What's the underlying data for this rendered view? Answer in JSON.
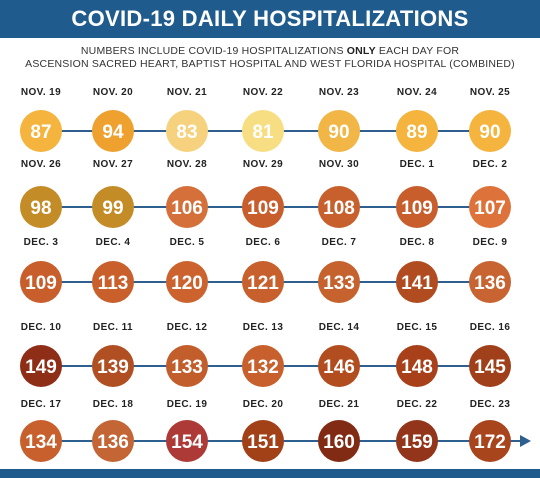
{
  "header": {
    "title": "COVID-19 DAILY HOSPITALIZATIONS",
    "subtitle_before": "NUMBERS INCLUDE COVID-19 HOSPITALIZATIONS",
    "subtitle_emphasis": "ONLY",
    "subtitle_after": "EACH DAY FOR",
    "subtitle_line2": "ASCENSION SACRED HEART, BAPTIST HOSPITAL AND WEST FLORIDA HOSPITAL (COMBINED)"
  },
  "colors": {
    "header_bg": "#1f5c8d",
    "connector": "#2e5f8e"
  },
  "chart_data": {
    "type": "table",
    "title": "COVID-19 DAILY HOSPITALIZATIONS",
    "categories": [
      "NOV. 19",
      "NOV. 20",
      "NOV. 21",
      "NOV. 22",
      "NOV. 23",
      "NOV. 24",
      "NOV. 25",
      "NOV. 26",
      "NOV. 27",
      "NOV. 28",
      "NOV. 29",
      "NOV. 30",
      "DEC. 1",
      "DEC. 2",
      "DEC. 3",
      "DEC. 4",
      "DEC. 5",
      "DEC. 6",
      "DEC. 7",
      "DEC. 8",
      "DEC. 9",
      "DEC. 10",
      "DEC. 11",
      "DEC. 12",
      "DEC. 13",
      "DEC. 14",
      "DEC. 15",
      "DEC. 16",
      "DEC. 17",
      "DEC. 18",
      "DEC. 19",
      "DEC. 20",
      "DEC. 21",
      "DEC. 22",
      "DEC. 23"
    ],
    "values": [
      87,
      94,
      83,
      81,
      90,
      89,
      90,
      98,
      99,
      106,
      109,
      108,
      109,
      107,
      109,
      113,
      120,
      121,
      133,
      141,
      136,
      149,
      139,
      133,
      132,
      146,
      148,
      145,
      134,
      136,
      154,
      151,
      160,
      159,
      172
    ],
    "circle_colors": [
      "#f4b43e",
      "#eea12e",
      "#f6d27e",
      "#f8de82",
      "#f1b646",
      "#f4b43e",
      "#f4b43e",
      "#c48c27",
      "#c48c27",
      "#d5703b",
      "#c95e2d",
      "#c8602e",
      "#c95e2d",
      "#dd733b",
      "#c95e2d",
      "#c9602c",
      "#cc632f",
      "#c8602d",
      "#c5622e",
      "#b04c1f",
      "#c86432",
      "#8e2e16",
      "#b04f22",
      "#c25e2b",
      "#c8602e",
      "#b24d1f",
      "#a84019",
      "#a0401a",
      "#c8602e",
      "#c36534",
      "#ad3a36",
      "#a24018",
      "#822b14",
      "#93351a",
      "#a8451d"
    ]
  }
}
